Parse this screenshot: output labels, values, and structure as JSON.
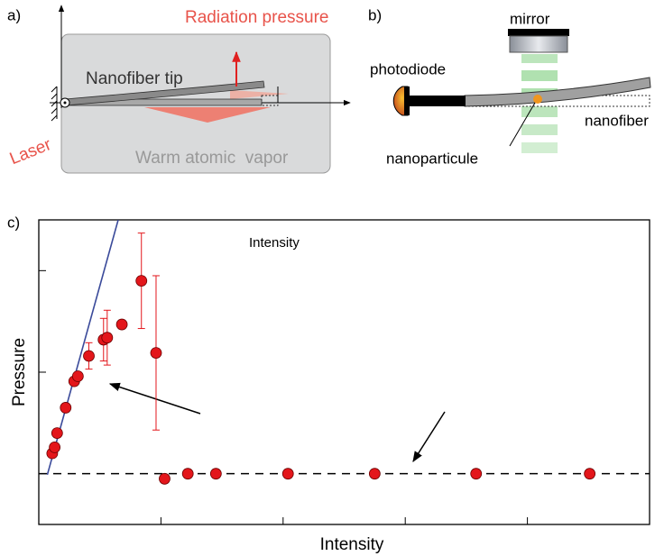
{
  "diagrams": {
    "a": {
      "label": "a)",
      "force": "Radiation pressure",
      "fiber": "Nanofiber tip",
      "laser": "Laser",
      "medium": "Warm atomic  vapor"
    },
    "b": {
      "label": "b)",
      "mirror": "mirror",
      "detector": "photodiode",
      "fiber": "nanofiber",
      "particle": "nanoparticule"
    }
  },
  "chart_data": {
    "type": "scatter",
    "panel_label": "c)",
    "annotation": "Intensity",
    "x_label": "Intensity",
    "y_label": "Pressure",
    "x": [
      0.11,
      0.13,
      0.15,
      0.22,
      0.29,
      0.32,
      0.41,
      0.53,
      0.56,
      0.68,
      0.84,
      0.96,
      1.03,
      1.22,
      1.45,
      2.04,
      2.75,
      3.58,
      4.51
    ],
    "values": [
      0.7,
      0.76,
      0.9,
      1.15,
      1.41,
      1.46,
      1.66,
      1.82,
      1.84,
      1.97,
      2.4,
      1.69,
      0.45,
      0.5,
      0.5,
      0.5,
      0.5,
      0.5,
      0.5
    ],
    "errors": [
      null,
      null,
      null,
      null,
      null,
      null,
      0.13,
      0.21,
      0.27,
      null,
      0.47,
      0.76,
      null,
      null,
      null,
      null,
      null,
      null,
      null
    ],
    "color": "#e3161b",
    "fit": {
      "x": [
        0.07,
        0.65
      ],
      "values": [
        0.49,
        3.0
      ],
      "color": "#3a4a9a"
    },
    "hline": {
      "value": 0.5,
      "color": "#000000",
      "dashed": true
    },
    "xlim": [
      0,
      5
    ],
    "ylim": [
      0,
      3
    ],
    "xticks": [
      1,
      2,
      3,
      4
    ],
    "yticks": [
      0.5,
      1.5,
      2.5
    ]
  }
}
